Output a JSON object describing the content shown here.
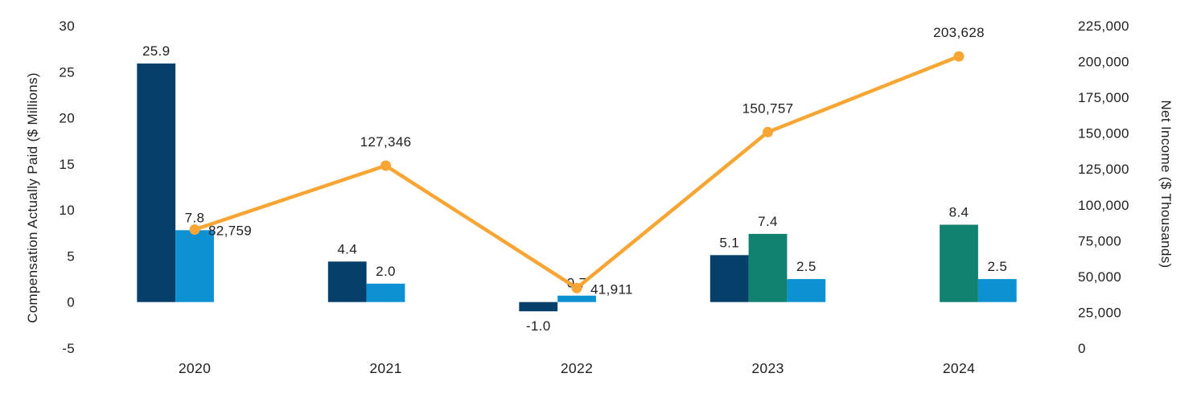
{
  "chart_data": {
    "type": "bar",
    "subtype": "combo-bar-line-dual-axis",
    "title": "",
    "categories": [
      "2020",
      "2021",
      "2022",
      "2023",
      "2024"
    ],
    "left_axis": {
      "label": "Compensation Actually Paid ($ Millions)",
      "min": -5,
      "max": 30,
      "ticks": [
        {
          "value": 30,
          "label": "30"
        },
        {
          "value": 25,
          "label": "25"
        },
        {
          "value": 20,
          "label": "20"
        },
        {
          "value": 15,
          "label": "15"
        },
        {
          "value": 10,
          "label": "10"
        },
        {
          "value": 5,
          "label": "5"
        },
        {
          "value": 0,
          "label": "0"
        },
        {
          "value": -5,
          "label": "-5"
        }
      ]
    },
    "right_axis": {
      "label": "Net Income ($ Thousands)",
      "min": 0,
      "max": 225000,
      "ticks": [
        {
          "value": 225000,
          "label": "225,000"
        },
        {
          "value": 200000,
          "label": "200,000"
        },
        {
          "value": 175000,
          "label": "175,000"
        },
        {
          "value": 150000,
          "label": "150,000"
        },
        {
          "value": 125000,
          "label": "125,000"
        },
        {
          "value": 100000,
          "label": "100,000"
        },
        {
          "value": 75000,
          "label": "75,000"
        },
        {
          "value": 50000,
          "label": "50,000"
        },
        {
          "value": 25000,
          "label": "25,000"
        },
        {
          "value": 0,
          "label": "0"
        }
      ]
    },
    "bar_series": [
      {
        "name": "compensation-navy",
        "color": "#05406a"
      },
      {
        "name": "compensation-teal",
        "color": "#118170"
      },
      {
        "name": "compensation-light-blue",
        "color": "#0e91d3"
      }
    ],
    "bars": [
      {
        "year": "2020",
        "series": 0,
        "slot": 0,
        "value": 25.9,
        "label": "25.9"
      },
      {
        "year": "2020",
        "series": 2,
        "slot": 1,
        "value": 7.8,
        "label": "7.8"
      },
      {
        "year": "2021",
        "series": 0,
        "slot": 0,
        "value": 4.4,
        "label": "4.4"
      },
      {
        "year": "2021",
        "series": 2,
        "slot": 1,
        "value": 2.0,
        "label": "2.0"
      },
      {
        "year": "2022",
        "series": 0,
        "slot": 0,
        "value": -1.0,
        "label": "-1.0"
      },
      {
        "year": "2022",
        "series": 2,
        "slot": 1,
        "value": 0.7,
        "label": "0.7"
      },
      {
        "year": "2023",
        "series": 0,
        "slot": 0,
        "value": 5.1,
        "label": "5.1"
      },
      {
        "year": "2023",
        "series": 1,
        "slot": 1,
        "value": 7.4,
        "label": "7.4"
      },
      {
        "year": "2023",
        "series": 2,
        "slot": 2,
        "value": 2.5,
        "label": "2.5"
      },
      {
        "year": "2024",
        "series": 1,
        "slot": 1,
        "value": 8.4,
        "label": "8.4"
      },
      {
        "year": "2024",
        "series": 2,
        "slot": 2,
        "value": 2.5,
        "label": "2.5"
      }
    ],
    "line_series": {
      "name": "net-income",
      "color": "#f7a636",
      "points": [
        {
          "year": "2020",
          "value": 82759,
          "label": "82,759",
          "label_pos": "right"
        },
        {
          "year": "2021",
          "value": 127346,
          "label": "127,346",
          "label_pos": "above"
        },
        {
          "year": "2022",
          "value": 41911,
          "label": "41,911",
          "label_pos": "right"
        },
        {
          "year": "2023",
          "value": 150757,
          "label": "150,757",
          "label_pos": "above"
        },
        {
          "year": "2024",
          "value": 203628,
          "label": "203,628",
          "label_pos": "above"
        }
      ]
    },
    "layout_hints": {
      "gridlines": "off",
      "axis_lines": "off",
      "legend": "none",
      "text_color": "#1f1f1f"
    }
  }
}
